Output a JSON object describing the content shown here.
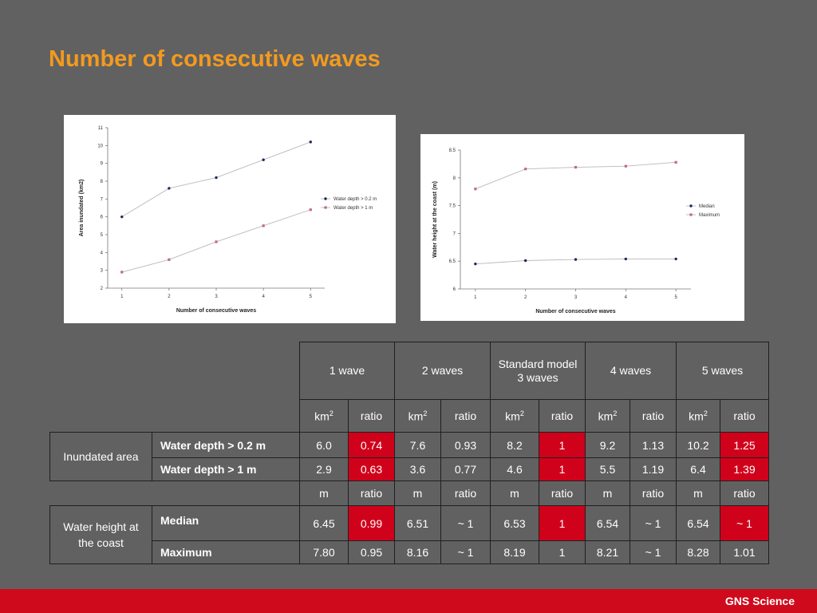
{
  "slide": {
    "title": "Number of consecutive waves",
    "footer": "GNS Science"
  },
  "chart_data": [
    {
      "type": "line",
      "xlabel": "Number of consecutive waves",
      "ylabel": "Area inundated (km2)",
      "x": [
        1,
        2,
        3,
        4,
        5
      ],
      "xlim": [
        0.7,
        5.3
      ],
      "ylim": [
        2,
        11
      ],
      "yticks": [
        2,
        3,
        4,
        5,
        6,
        7,
        8,
        9,
        10,
        11
      ],
      "legend": "right",
      "series": [
        {
          "name": "Water depth >  0.2 m",
          "values": [
            6.0,
            7.6,
            8.2,
            9.2,
            10.2
          ],
          "color": "#1a2a5a",
          "marker": "circle"
        },
        {
          "name": "Water depth >  1 m",
          "values": [
            2.9,
            3.6,
            4.6,
            5.5,
            6.4
          ],
          "color": "#c06880",
          "marker": "square"
        }
      ]
    },
    {
      "type": "line",
      "xlabel": "Number of consecutive waves",
      "ylabel": "Water height at the coast (m)",
      "x": [
        1,
        2,
        3,
        4,
        5
      ],
      "xlim": [
        0.7,
        5.3
      ],
      "ylim": [
        6,
        8.5
      ],
      "yticks": [
        6,
        6.5,
        7,
        7.5,
        8,
        8.5
      ],
      "legend": "right",
      "series": [
        {
          "name": "Median",
          "values": [
            6.45,
            6.51,
            6.53,
            6.54,
            6.54
          ],
          "color": "#1a2a5a",
          "marker": "circle"
        },
        {
          "name": "Maximum",
          "values": [
            7.8,
            8.16,
            8.19,
            8.21,
            8.28
          ],
          "color": "#c06880",
          "marker": "square"
        }
      ]
    }
  ],
  "table": {
    "headers": [
      "1 wave",
      "2 waves",
      "Standard model\n3 waves",
      "4 waves",
      "5 waves"
    ],
    "unit_rows": [
      {
        "unit": "km",
        "sup": "2",
        "ratio": "ratio"
      },
      {
        "unit": "m",
        "sup": "",
        "ratio": "ratio"
      }
    ],
    "groups": [
      {
        "label": "Inundated area",
        "unit_row": 0,
        "rows": [
          {
            "label": "Water depth > 0.2 m",
            "cells": [
              [
                "6.0",
                "0.74"
              ],
              [
                "7.6",
                "0.93"
              ],
              [
                "8.2",
                "1"
              ],
              [
                "9.2",
                "1.13"
              ],
              [
                "10.2",
                "1.25"
              ]
            ],
            "highlight": [
              false,
              true,
              false,
              false,
              false,
              true,
              false,
              false,
              false,
              true
            ]
          },
          {
            "label": "Water depth > 1 m",
            "cells": [
              [
                "2.9",
                "0.63"
              ],
              [
                "3.6",
                "0.77"
              ],
              [
                "4.6",
                "1"
              ],
              [
                "5.5",
                "1.19"
              ],
              [
                "6.4",
                "1.39"
              ]
            ],
            "highlight": [
              false,
              true,
              false,
              false,
              false,
              true,
              false,
              false,
              false,
              true
            ]
          }
        ]
      },
      {
        "label": "Water height at the coast",
        "unit_row": 1,
        "rows": [
          {
            "label": "Median",
            "cells": [
              [
                "6.45",
                "0.99"
              ],
              [
                "6.51",
                "~ 1"
              ],
              [
                "6.53",
                "1"
              ],
              [
                "6.54",
                "~ 1"
              ],
              [
                "6.54",
                "~ 1"
              ]
            ],
            "highlight": [
              false,
              true,
              false,
              false,
              false,
              true,
              false,
              false,
              false,
              true
            ]
          },
          {
            "label": "Maximum",
            "cells": [
              [
                "7.80",
                "0.95"
              ],
              [
                "8.16",
                "~ 1"
              ],
              [
                "8.19",
                "1"
              ],
              [
                "8.21",
                "~ 1"
              ],
              [
                "8.28",
                "1.01"
              ]
            ],
            "highlight": [
              false,
              false,
              false,
              false,
              false,
              false,
              false,
              false,
              false,
              false
            ]
          }
        ]
      }
    ],
    "highlight_color": "#d0021b"
  }
}
